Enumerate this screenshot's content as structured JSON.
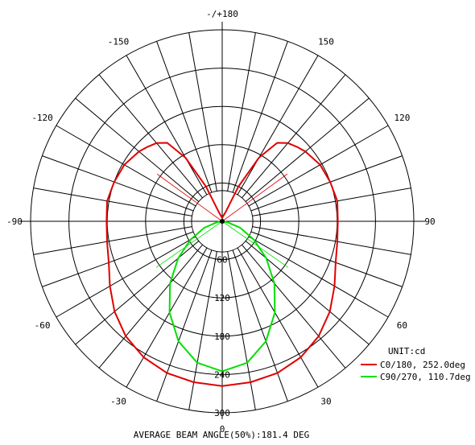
{
  "chart_data": {
    "type": "polar",
    "title": "",
    "angle_labels": [
      {
        "deg": 180,
        "text": "-/+180"
      },
      {
        "deg": 150,
        "text": "150"
      },
      {
        "deg": 120,
        "text": "120"
      },
      {
        "deg": 90,
        "text": "90"
      },
      {
        "deg": 60,
        "text": "60"
      },
      {
        "deg": 30,
        "text": "30"
      },
      {
        "deg": 0,
        "text": "0"
      },
      {
        "deg": -30,
        "text": "-30"
      },
      {
        "deg": -60,
        "text": "-60"
      },
      {
        "deg": -90,
        "text": "-90"
      },
      {
        "deg": -120,
        "text": "-120"
      },
      {
        "deg": -150,
        "text": "-150"
      }
    ],
    "radial_ticks": [
      60,
      120,
      180,
      240,
      300
    ],
    "radial_tick_labels": [
      "60",
      "120",
      "180",
      "240",
      "300"
    ],
    "rmax": 300,
    "spoke_step_deg": 10,
    "unit_label": "UNIT:cd",
    "footer": "AVERAGE BEAM ANGLE(50%):181.4 DEG",
    "series": [
      {
        "name": "C0/180, 252.0deg",
        "color": "#e00000",
        "angle": [
          -180,
          -160,
          -155,
          -150,
          -145,
          -140,
          -135,
          -130,
          -120,
          -110,
          -100,
          -90,
          -80,
          -70,
          -60,
          -50,
          -40,
          -30,
          -20,
          -10,
          0,
          10,
          20,
          30,
          40,
          50,
          60,
          70,
          80,
          90,
          100,
          110,
          120,
          130,
          135,
          140,
          145,
          150,
          155,
          160,
          170,
          180
        ],
        "value": [
          5,
          15,
          60,
          115,
          150,
          160,
          165,
          170,
          177,
          180,
          183,
          181,
          183,
          189,
          203,
          220,
          235,
          246,
          253,
          256,
          258,
          256,
          253,
          246,
          235,
          220,
          203,
          189,
          183,
          181,
          183,
          180,
          177,
          170,
          165,
          160,
          150,
          115,
          60,
          15,
          8,
          5
        ]
      },
      {
        "name": "C90/270, 110.7deg",
        "color": "#00e000",
        "angle": [
          -180,
          -90,
          -80,
          -70,
          -60,
          -50,
          -40,
          -30,
          -20,
          -10,
          0,
          10,
          20,
          30,
          40,
          50,
          60,
          70,
          80,
          90,
          180
        ],
        "value": [
          0,
          0,
          8,
          30,
          57,
          90,
          127,
          165,
          200,
          225,
          235,
          225,
          200,
          165,
          127,
          90,
          57,
          30,
          8,
          0,
          0
        ]
      }
    ],
    "half_max_markers": [
      {
        "color": "#e00000",
        "angles": [
          -126,
          126
        ]
      },
      {
        "color": "#00e000",
        "angles": [
          -55,
          55
        ]
      }
    ]
  }
}
